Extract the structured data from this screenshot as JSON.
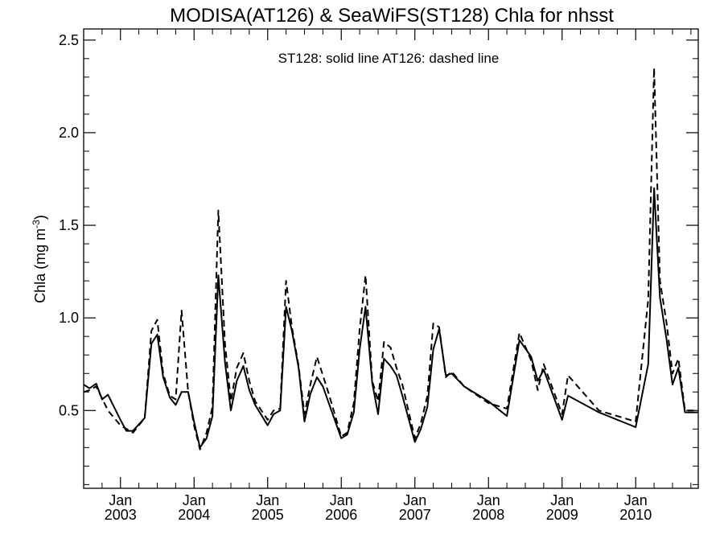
{
  "chart_data": {
    "type": "line",
    "title": "MODISA(AT126) & SeaWiFS(ST128)  Chla for nhsst",
    "annotation": "ST128: solid line   AT126: dashed line",
    "ylabel_main": "Chla (mg m",
    "ylabel_sup": "-3",
    "ylabel_close": ")",
    "xlim": [
      2002.5,
      2010.85
    ],
    "ylim": [
      0.08,
      2.56
    ],
    "yticks": [
      0.5,
      1.0,
      1.5,
      2.0,
      2.5
    ],
    "ytick_labels": [
      "0.5",
      "1.0",
      "1.5",
      "2.0",
      "2.5"
    ],
    "xticks": [
      {
        "x": 2003.0,
        "month": "Jan",
        "year": "2003"
      },
      {
        "x": 2004.0,
        "month": "Jan",
        "year": "2004"
      },
      {
        "x": 2005.0,
        "month": "Jan",
        "year": "2005"
      },
      {
        "x": 2006.0,
        "month": "Jan",
        "year": "2006"
      },
      {
        "x": 2007.0,
        "month": "Jan",
        "year": "2007"
      },
      {
        "x": 2008.0,
        "month": "Jan",
        "year": "2008"
      },
      {
        "x": 2009.0,
        "month": "Jan",
        "year": "2009"
      },
      {
        "x": 2010.0,
        "month": "Jan",
        "year": "2010"
      }
    ],
    "series": [
      {
        "name": "ST128",
        "style": "solid",
        "color": "#000000",
        "x": [
          2002.5,
          2002.58,
          2002.67,
          2002.75,
          2002.83,
          2003.0,
          2003.08,
          2003.17,
          2003.33,
          2003.42,
          2003.5,
          2003.58,
          2003.67,
          2003.75,
          2003.83,
          2003.92,
          2004.0,
          2004.08,
          2004.17,
          2004.25,
          2004.33,
          2004.42,
          2004.5,
          2004.58,
          2004.67,
          2004.75,
          2004.83,
          2005.0,
          2005.08,
          2005.17,
          2005.25,
          2005.33,
          2005.42,
          2005.5,
          2005.58,
          2005.67,
          2005.75,
          2005.83,
          2006.0,
          2006.08,
          2006.17,
          2006.25,
          2006.33,
          2006.42,
          2006.5,
          2006.58,
          2006.67,
          2006.75,
          2006.83,
          2007.0,
          2007.08,
          2007.17,
          2007.25,
          2007.33,
          2007.42,
          2007.5,
          2007.67,
          2008.0,
          2008.25,
          2008.42,
          2008.58,
          2008.67,
          2008.75,
          2009.0,
          2009.08,
          2009.5,
          2010.0,
          2010.17,
          2010.25,
          2010.33,
          2010.42,
          2010.5,
          2010.58,
          2010.67,
          2010.75,
          2010.85
        ],
        "y": [
          0.64,
          0.62,
          0.645,
          0.56,
          0.585,
          0.45,
          0.39,
          0.39,
          0.46,
          0.86,
          0.91,
          0.68,
          0.57,
          0.53,
          0.6,
          0.6,
          0.44,
          0.3,
          0.35,
          0.47,
          1.23,
          0.76,
          0.5,
          0.66,
          0.74,
          0.61,
          0.53,
          0.42,
          0.48,
          0.5,
          1.06,
          0.93,
          0.73,
          0.44,
          0.59,
          0.68,
          0.63,
          0.54,
          0.35,
          0.37,
          0.49,
          0.83,
          1.06,
          0.65,
          0.48,
          0.78,
          0.74,
          0.69,
          0.58,
          0.33,
          0.4,
          0.52,
          0.83,
          0.94,
          0.69,
          0.7,
          0.63,
          0.55,
          0.47,
          0.88,
          0.79,
          0.66,
          0.72,
          0.45,
          0.58,
          0.49,
          0.41,
          0.75,
          1.7,
          1.11,
          0.88,
          0.64,
          0.73,
          0.49,
          0.49,
          0.49
        ]
      },
      {
        "name": "AT126",
        "style": "dashed",
        "color": "#000000",
        "x": [
          2002.5,
          2002.58,
          2002.67,
          2002.83,
          2003.0,
          2003.17,
          2003.33,
          2003.42,
          2003.5,
          2003.58,
          2003.67,
          2003.75,
          2003.83,
          2003.92,
          2004.0,
          2004.08,
          2004.17,
          2004.25,
          2004.33,
          2004.42,
          2004.5,
          2004.58,
          2004.67,
          2004.75,
          2004.83,
          2005.0,
          2005.08,
          2005.17,
          2005.25,
          2005.33,
          2005.42,
          2005.5,
          2005.58,
          2005.67,
          2005.75,
          2005.83,
          2006.0,
          2006.08,
          2006.17,
          2006.25,
          2006.33,
          2006.42,
          2006.5,
          2006.58,
          2006.67,
          2006.75,
          2006.83,
          2007.0,
          2007.08,
          2007.17,
          2007.25,
          2007.33,
          2007.42,
          2007.5,
          2007.67,
          2008.0,
          2008.25,
          2008.42,
          2008.58,
          2008.67,
          2008.75,
          2009.0,
          2009.08,
          2009.5,
          2010.0,
          2010.17,
          2010.25,
          2010.33,
          2010.42,
          2010.5,
          2010.58,
          2010.67,
          2010.75,
          2010.85
        ],
        "y": [
          0.6,
          0.61,
          0.63,
          0.5,
          0.42,
          0.38,
          0.46,
          0.93,
          0.99,
          0.7,
          0.58,
          0.56,
          1.04,
          0.6,
          0.42,
          0.29,
          0.38,
          0.52,
          1.58,
          0.86,
          0.55,
          0.73,
          0.81,
          0.66,
          0.55,
          0.45,
          0.5,
          0.51,
          1.2,
          0.95,
          0.74,
          0.48,
          0.64,
          0.79,
          0.69,
          0.59,
          0.36,
          0.38,
          0.54,
          0.94,
          1.23,
          0.66,
          0.55,
          0.87,
          0.84,
          0.73,
          0.64,
          0.35,
          0.43,
          0.58,
          0.97,
          0.95,
          0.68,
          0.71,
          0.63,
          0.54,
          0.51,
          0.92,
          0.77,
          0.61,
          0.75,
          0.48,
          0.69,
          0.5,
          0.44,
          1.1,
          2.35,
          1.2,
          0.97,
          0.7,
          0.78,
          0.5,
          0.5,
          0.5
        ]
      }
    ]
  }
}
